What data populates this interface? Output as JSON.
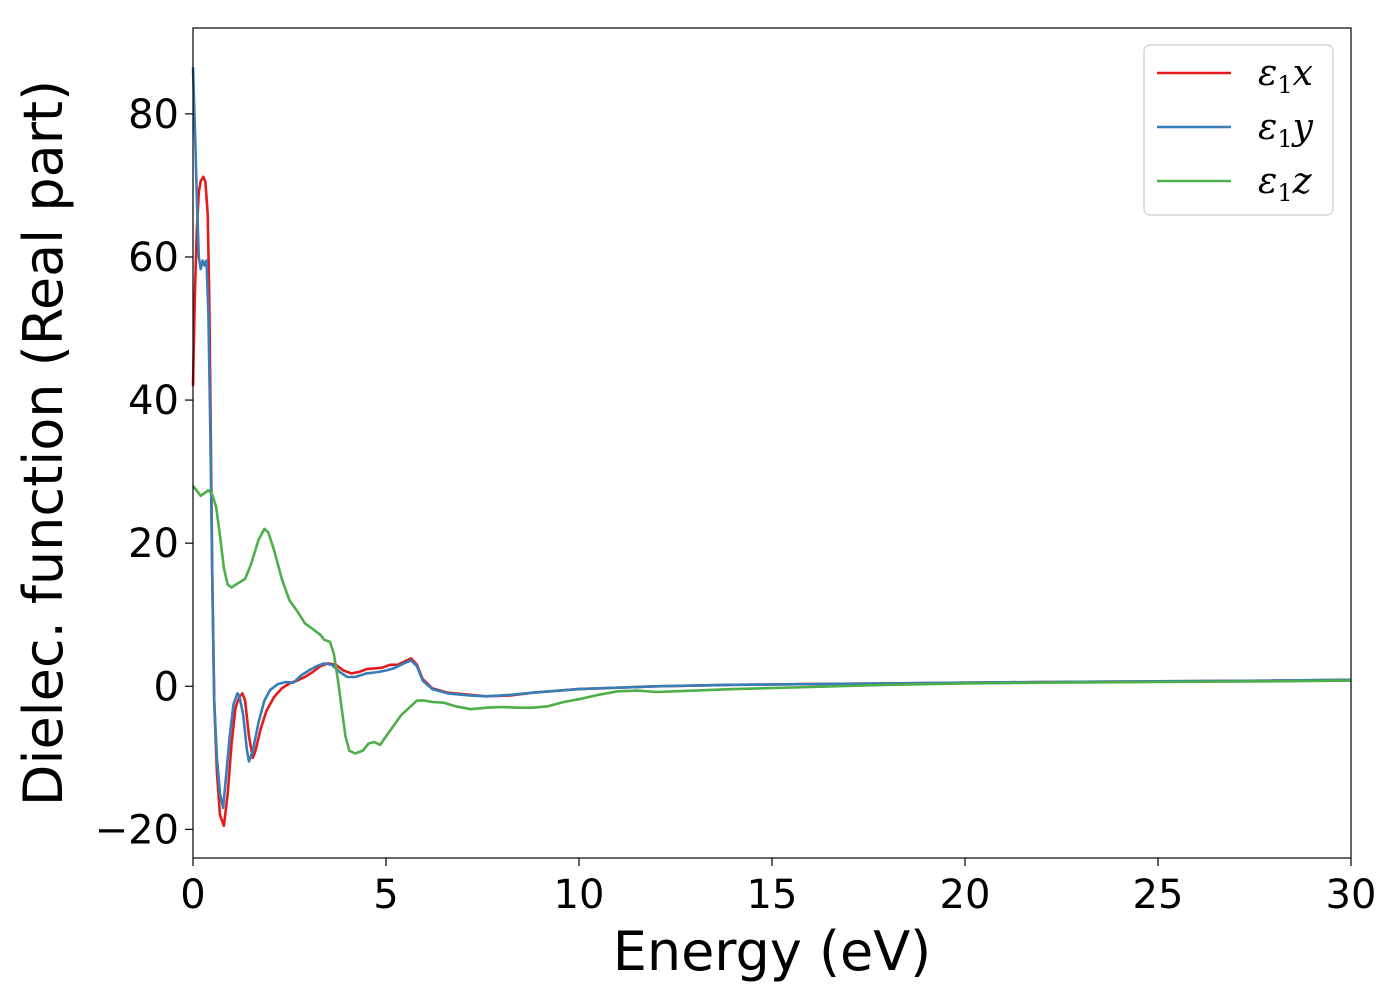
{
  "chart_data": {
    "type": "line",
    "xlabel": "Energy (eV)",
    "ylabel": "Dielec. function (Real part)",
    "xlim": [
      0,
      30
    ],
    "ylim": [
      -24,
      92
    ],
    "xticks": [
      0,
      5,
      10,
      15,
      20,
      25,
      30
    ],
    "yticks": [
      -20,
      0,
      20,
      40,
      60,
      80
    ],
    "ytick_labels": [
      "−20",
      "0",
      "20",
      "40",
      "60",
      "80"
    ],
    "grid": false,
    "legend_position": "top-right",
    "series": [
      {
        "name": "ε₁x",
        "sym": "ε",
        "sub": "1",
        "comp": "x",
        "color": "#e41a1c",
        "points": [
          [
            0,
            42
          ],
          [
            0.05,
            55
          ],
          [
            0.1,
            64
          ],
          [
            0.15,
            69
          ],
          [
            0.2,
            70.6
          ],
          [
            0.27,
            71.2
          ],
          [
            0.32,
            70.5
          ],
          [
            0.38,
            66
          ],
          [
            0.42,
            55
          ],
          [
            0.46,
            35
          ],
          [
            0.5,
            15
          ],
          [
            0.55,
            -2
          ],
          [
            0.62,
            -12
          ],
          [
            0.7,
            -18
          ],
          [
            0.8,
            -19.5
          ],
          [
            0.9,
            -15
          ],
          [
            1.0,
            -8
          ],
          [
            1.1,
            -3
          ],
          [
            1.2,
            -1.5
          ],
          [
            1.28,
            -1
          ],
          [
            1.35,
            -2
          ],
          [
            1.45,
            -7
          ],
          [
            1.55,
            -10
          ],
          [
            1.62,
            -9
          ],
          [
            1.75,
            -6
          ],
          [
            1.9,
            -3.5
          ],
          [
            2.1,
            -1.5
          ],
          [
            2.3,
            -0.3
          ],
          [
            2.5,
            0.4
          ],
          [
            2.7,
            0.8
          ],
          [
            2.9,
            1.3
          ],
          [
            3.1,
            2
          ],
          [
            3.3,
            2.8
          ],
          [
            3.5,
            3.2
          ],
          [
            3.7,
            3
          ],
          [
            3.9,
            2.2
          ],
          [
            4.1,
            1.8
          ],
          [
            4.3,
            2
          ],
          [
            4.5,
            2.4
          ],
          [
            4.7,
            2.5
          ],
          [
            4.9,
            2.6
          ],
          [
            5.1,
            3
          ],
          [
            5.3,
            3
          ],
          [
            5.5,
            3.5
          ],
          [
            5.65,
            3.9
          ],
          [
            5.8,
            3
          ],
          [
            5.95,
            1
          ],
          [
            6.2,
            -0.3
          ],
          [
            6.6,
            -0.9
          ],
          [
            7.2,
            -1.2
          ],
          [
            7.6,
            -1.4
          ],
          [
            8.2,
            -1.3
          ],
          [
            8.8,
            -0.9
          ],
          [
            9.5,
            -0.6
          ],
          [
            10,
            -0.4
          ],
          [
            11,
            -0.2
          ],
          [
            12,
            0
          ],
          [
            14,
            0.2
          ],
          [
            16,
            0.3
          ],
          [
            18,
            0.4
          ],
          [
            20,
            0.5
          ],
          [
            22,
            0.6
          ],
          [
            25,
            0.7
          ],
          [
            28,
            0.8
          ],
          [
            30,
            0.9
          ]
        ]
      },
      {
        "name": "ε₁y",
        "sym": "ε",
        "sub": "1",
        "comp": "y",
        "color": "#377eb8",
        "points": [
          [
            0,
            86.5
          ],
          [
            0.05,
            78
          ],
          [
            0.1,
            68
          ],
          [
            0.15,
            60
          ],
          [
            0.2,
            58.3
          ],
          [
            0.25,
            59.5
          ],
          [
            0.3,
            58.8
          ],
          [
            0.35,
            59.5
          ],
          [
            0.4,
            52
          ],
          [
            0.45,
            35
          ],
          [
            0.5,
            15
          ],
          [
            0.55,
            -2
          ],
          [
            0.62,
            -10
          ],
          [
            0.7,
            -15
          ],
          [
            0.78,
            -17
          ],
          [
            0.85,
            -13
          ],
          [
            0.95,
            -7
          ],
          [
            1.05,
            -2.5
          ],
          [
            1.15,
            -1
          ],
          [
            1.2,
            -1.3
          ],
          [
            1.3,
            -4
          ],
          [
            1.4,
            -9
          ],
          [
            1.45,
            -10.5
          ],
          [
            1.55,
            -9
          ],
          [
            1.7,
            -5
          ],
          [
            1.85,
            -2
          ],
          [
            2.0,
            -0.5
          ],
          [
            2.2,
            0.3
          ],
          [
            2.4,
            0.6
          ],
          [
            2.6,
            0.5
          ],
          [
            2.8,
            1.5
          ],
          [
            3.0,
            2.2
          ],
          [
            3.2,
            2.8
          ],
          [
            3.4,
            3.2
          ],
          [
            3.6,
            3
          ],
          [
            3.8,
            2
          ],
          [
            4.0,
            1.3
          ],
          [
            4.2,
            1.3
          ],
          [
            4.5,
            1.8
          ],
          [
            4.8,
            2
          ],
          [
            5.0,
            2.2
          ],
          [
            5.2,
            2.5
          ],
          [
            5.5,
            3.3
          ],
          [
            5.65,
            3.6
          ],
          [
            5.8,
            2.8
          ],
          [
            5.95,
            0.8
          ],
          [
            6.2,
            -0.4
          ],
          [
            6.6,
            -1
          ],
          [
            7.2,
            -1.3
          ],
          [
            7.6,
            -1.4
          ],
          [
            8.2,
            -1.2
          ],
          [
            8.8,
            -0.9
          ],
          [
            9.5,
            -0.6
          ],
          [
            10,
            -0.4
          ],
          [
            11,
            -0.2
          ],
          [
            12,
            0
          ],
          [
            14,
            0.2
          ],
          [
            16,
            0.3
          ],
          [
            18,
            0.4
          ],
          [
            20,
            0.5
          ],
          [
            22,
            0.6
          ],
          [
            25,
            0.7
          ],
          [
            28,
            0.8
          ],
          [
            30,
            0.9
          ]
        ]
      },
      {
        "name": "ε₁z",
        "sym": "ε",
        "sub": "1",
        "comp": "z",
        "color": "#4daf4a",
        "points": [
          [
            0,
            28
          ],
          [
            0.1,
            27.3
          ],
          [
            0.2,
            26.6
          ],
          [
            0.3,
            27
          ],
          [
            0.4,
            27.4
          ],
          [
            0.5,
            26.8
          ],
          [
            0.6,
            25
          ],
          [
            0.7,
            21
          ],
          [
            0.8,
            16.5
          ],
          [
            0.9,
            14.2
          ],
          [
            1.0,
            13.8
          ],
          [
            1.1,
            14.2
          ],
          [
            1.2,
            14.5
          ],
          [
            1.35,
            15
          ],
          [
            1.5,
            17
          ],
          [
            1.7,
            20.5
          ],
          [
            1.85,
            22
          ],
          [
            1.95,
            21.5
          ],
          [
            2.1,
            19
          ],
          [
            2.3,
            15
          ],
          [
            2.5,
            12
          ],
          [
            2.7,
            10.5
          ],
          [
            2.9,
            8.8
          ],
          [
            3.1,
            8
          ],
          [
            3.3,
            7.2
          ],
          [
            3.4,
            6.5
          ],
          [
            3.55,
            6.2
          ],
          [
            3.65,
            4.5
          ],
          [
            3.75,
            1
          ],
          [
            3.85,
            -3
          ],
          [
            3.95,
            -7
          ],
          [
            4.05,
            -9
          ],
          [
            4.2,
            -9.4
          ],
          [
            4.4,
            -9
          ],
          [
            4.55,
            -8
          ],
          [
            4.7,
            -7.8
          ],
          [
            4.85,
            -8.2
          ],
          [
            5.0,
            -7
          ],
          [
            5.2,
            -5.5
          ],
          [
            5.4,
            -4
          ],
          [
            5.6,
            -3
          ],
          [
            5.8,
            -2
          ],
          [
            6.0,
            -2
          ],
          [
            6.2,
            -2.2
          ],
          [
            6.5,
            -2.3
          ],
          [
            6.8,
            -2.8
          ],
          [
            7.2,
            -3.2
          ],
          [
            7.6,
            -3
          ],
          [
            8.0,
            -2.9
          ],
          [
            8.4,
            -3
          ],
          [
            8.8,
            -3
          ],
          [
            9.2,
            -2.8
          ],
          [
            9.6,
            -2.2
          ],
          [
            10,
            -1.8
          ],
          [
            10.5,
            -1.2
          ],
          [
            11,
            -0.7
          ],
          [
            11.5,
            -0.6
          ],
          [
            12,
            -0.8
          ],
          [
            13,
            -0.6
          ],
          [
            14,
            -0.4
          ],
          [
            16,
            -0.1
          ],
          [
            18,
            0.2
          ],
          [
            20,
            0.4
          ],
          [
            22,
            0.5
          ],
          [
            25,
            0.6
          ],
          [
            28,
            0.7
          ],
          [
            30,
            0.8
          ]
        ]
      }
    ]
  }
}
